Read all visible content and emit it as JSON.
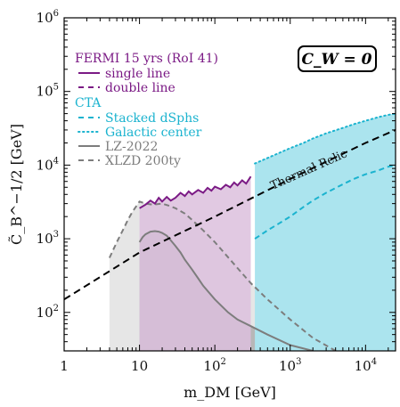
{
  "chart_data": {
    "type": "line",
    "xlabel": "m_DM [GeV]",
    "ylabel": "C̃_B^−1/2 [GeV]",
    "xscale": "log",
    "yscale": "log",
    "xlim": [
      1,
      25000
    ],
    "ylim": [
      30,
      1000000
    ],
    "x_ticks": [
      {
        "v": 1,
        "label": "1"
      },
      {
        "v": 10,
        "label": "10"
      },
      {
        "v": 100,
        "label": "10",
        "exp": "2"
      },
      {
        "v": 1000,
        "label": "10",
        "exp": "3"
      },
      {
        "v": 10000,
        "label": "10",
        "exp": "4"
      }
    ],
    "y_ticks": [
      {
        "v": 100,
        "label": "10",
        "exp": "2"
      },
      {
        "v": 1000,
        "label": "10",
        "exp": "3"
      },
      {
        "v": 10000,
        "label": "10",
        "exp": "4"
      },
      {
        "v": 100000,
        "label": "10",
        "exp": "5"
      },
      {
        "v": 1000000,
        "label": "10",
        "exp": "6"
      }
    ],
    "annotation_box": "C_W = 0",
    "relic_label": "Thermal Relic",
    "legend": {
      "fermi_title": "FERMI 15 yrs (RoI 41)",
      "cta_title": "CTA",
      "items": [
        {
          "group": "fermi",
          "label": "single line",
          "style": "solid",
          "color": "#7b1a85"
        },
        {
          "group": "fermi",
          "label": "double line",
          "style": "dashed",
          "color": "#7b1a85"
        },
        {
          "group": "cta",
          "label": "Stacked dSphs",
          "style": "dashed",
          "color": "#1bb3cf"
        },
        {
          "group": "cta",
          "label": "Galactic center",
          "style": "dotted",
          "color": "#1bb3cf"
        },
        {
          "group": "lz",
          "label": "LZ-2022",
          "style": "solid",
          "color": "#7d7d7d"
        },
        {
          "group": "lz",
          "label": "XLZD 200ty",
          "style": "dashed",
          "color": "#7d7d7d"
        }
      ]
    },
    "colors": {
      "fermi": "#7b1a85",
      "fermi_fill": "#dcc0dd",
      "cta": "#1bb3cf",
      "cta_fill": "#abe4ee",
      "lz": "#7d7d7d",
      "xlzd_fill": "#e6e6e6",
      "lz_fill": "#b7b7b7"
    },
    "series": [
      {
        "key": "thermal_relic",
        "x": [
          1,
          10,
          100,
          1000,
          10000,
          25000
        ],
        "y": [
          150,
          650,
          2000,
          6500,
          20000,
          30000
        ]
      },
      {
        "key": "fermi_single",
        "x": [
          10,
          12,
          14,
          16,
          18,
          20,
          23,
          26,
          30,
          35,
          40,
          45,
          50,
          60,
          70,
          80,
          90,
          100,
          120,
          140,
          160,
          180,
          200,
          230,
          260,
          300
        ],
        "y": [
          2600,
          2900,
          3300,
          3000,
          3600,
          3200,
          3700,
          3300,
          3600,
          4200,
          3800,
          4400,
          4000,
          4600,
          4200,
          4900,
          4500,
          5100,
          4700,
          5400,
          5000,
          5800,
          5300,
          6200,
          5600,
          7000
        ]
      },
      {
        "key": "xlzd",
        "x": [
          4,
          5,
          6,
          7,
          8,
          10,
          12,
          15,
          20,
          25,
          30,
          40,
          50,
          70,
          100,
          200,
          300,
          500,
          1000,
          2000,
          4000,
          5000
        ],
        "y": [
          550,
          900,
          1300,
          1800,
          2300,
          3200,
          3000,
          2900,
          3000,
          2800,
          2600,
          2200,
          1800,
          1300,
          900,
          400,
          250,
          150,
          80,
          45,
          30,
          25
        ]
      },
      {
        "key": "lz",
        "x": [
          10,
          11,
          12,
          14,
          16,
          18,
          20,
          23,
          26,
          30,
          35,
          40,
          50,
          60,
          70,
          100,
          150,
          200,
          300,
          500,
          1000,
          2000
        ],
        "y": [
          900,
          1050,
          1150,
          1250,
          1270,
          1250,
          1200,
          1100,
          950,
          800,
          650,
          520,
          380,
          290,
          230,
          150,
          100,
          80,
          65,
          50,
          36,
          30
        ]
      },
      {
        "key": "cta_dsph",
        "x": [
          340,
          500,
          700,
          1000,
          1500,
          2000,
          3000,
          5000,
          7000,
          10000,
          15000,
          20000,
          25000
        ],
        "y": [
          1000,
          1300,
          1600,
          2000,
          2700,
          3300,
          4200,
          5500,
          6500,
          7500,
          8500,
          9500,
          10000
        ]
      },
      {
        "key": "cta_gc",
        "x": [
          340,
          500,
          700,
          1000,
          1500,
          2000,
          3000,
          5000,
          7000,
          10000,
          15000,
          20000,
          25000
        ],
        "y": [
          10500,
          12500,
          14500,
          17000,
          20000,
          23000,
          27000,
          32000,
          36000,
          40000,
          45000,
          48000,
          50000
        ]
      }
    ]
  }
}
